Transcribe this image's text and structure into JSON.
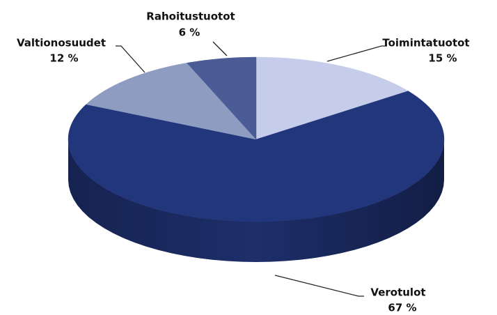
{
  "chart_data": {
    "type": "pie",
    "categories": [
      "Toimintatuotot",
      "Verotulot",
      "Valtionosuudet",
      "Rahoitustuotot"
    ],
    "values": [
      15,
      67,
      12,
      6
    ],
    "value_labels": [
      "15 %",
      "67 %",
      "12 %",
      "6 %"
    ],
    "colors": [
      "#c6cdea",
      "#22367c",
      "#8f9cc2",
      "#4b5b96"
    ]
  }
}
